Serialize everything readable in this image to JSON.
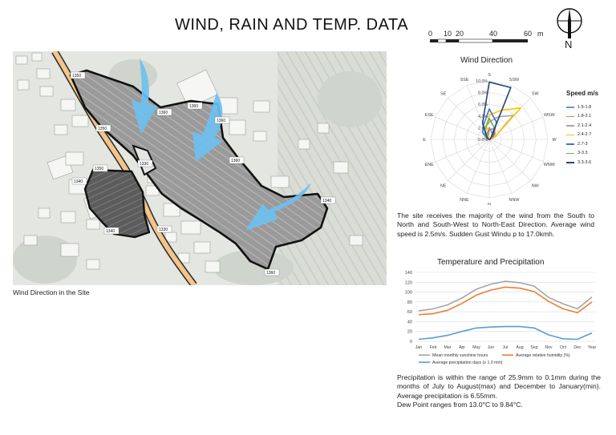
{
  "header": {
    "title": "WIND, RAIN AND  TEMP. DATA",
    "scale_labels": [
      "0",
      "10",
      "20",
      "40",
      "60",
      "m"
    ],
    "compass_letter": "N"
  },
  "map": {
    "caption": "Wind Direction in the Site",
    "contour_labels": [
      "1350",
      "1360",
      "1360",
      "1360",
      "1350",
      "1360",
      "1340",
      "1330",
      "1350",
      "1340",
      "1360",
      "1340",
      "1330"
    ]
  },
  "wind": {
    "title": "Wind Direction",
    "directions": [
      "S",
      "SSW",
      "SW",
      "WSW",
      "W",
      "WNW",
      "NW",
      "NNW",
      "N",
      "NNE",
      "NE",
      "ENE",
      "E",
      "ESE",
      "SE",
      "SSE"
    ],
    "ring_labels": [
      "0.0%",
      "2.0%",
      "4.0%",
      "6.0%",
      "8.0%",
      "10.0%"
    ],
    "legend_title": "Speed m/s",
    "series": [
      {
        "name": "1.5-1.8",
        "color": "#5b9bd5",
        "values": [
          2.0,
          1.2,
          0.8,
          0.4,
          0.2,
          0,
          0,
          0,
          0,
          0,
          0,
          0,
          0,
          0.2,
          0.6,
          1.0
        ]
      },
      {
        "name": "1.8-2.1",
        "color": "#ed7d31",
        "values": [
          1.6,
          2.0,
          1.4,
          0.6,
          0.2,
          0,
          0,
          0,
          0,
          0,
          0,
          0,
          0,
          0,
          0.2,
          0.6
        ]
      },
      {
        "name": "2.1-2.4",
        "color": "#a5a5a5",
        "values": [
          3.0,
          4.2,
          5.8,
          1.0,
          0.2,
          0,
          0,
          0,
          0,
          0,
          0,
          0,
          0,
          0.2,
          1.0,
          2.0
        ]
      },
      {
        "name": "2.4-2.7",
        "color": "#ffc000",
        "values": [
          4.2,
          5.4,
          7.6,
          1.0,
          0.2,
          0,
          0,
          0,
          0,
          0,
          0,
          0,
          0,
          0,
          0.6,
          1.6
        ]
      },
      {
        "name": "2.7-3",
        "color": "#4472c4",
        "values": [
          5.2,
          3.2,
          1.0,
          0.2,
          0,
          0,
          0,
          0,
          0,
          0,
          0,
          0,
          0,
          0.4,
          1.6,
          2.6
        ]
      },
      {
        "name": "3-3.3",
        "color": "#70ad47",
        "values": [
          3.6,
          2.2,
          0.6,
          0.2,
          0,
          0,
          0,
          0,
          0,
          0,
          0,
          0,
          0,
          0.2,
          1.0,
          2.0
        ]
      },
      {
        "name": "3.3-3.6",
        "color": "#264478",
        "values": [
          9.8,
          9.6,
          0.4,
          0.2,
          0,
          0,
          0,
          0,
          0,
          0,
          0,
          0,
          0,
          0.2,
          0.6,
          3.0
        ]
      }
    ],
    "description": "The site receives the majority of the wind from the South to North and South-West to North-East Direction. Average wind speed is 2.5m/s. Sudden Gust Windu p to 17.0kmh."
  },
  "chart_data": {
    "type": "line",
    "title": "Temperature and Precipitation",
    "categories": [
      "Jan",
      "Feb",
      "Mar",
      "Apr",
      "May",
      "Jun",
      "Jul",
      "Aug",
      "Sep",
      "Nov",
      "Oct",
      "Dec",
      "Year"
    ],
    "ylim": [
      0,
      140
    ],
    "yticks": [
      "0",
      "20",
      "40",
      "60",
      "80",
      "100",
      "120",
      "140"
    ],
    "legend_placement": "bottom",
    "series": [
      {
        "name": "Mean monthly sunshine hours",
        "color": "#a5a5a5",
        "values": [
          62,
          66,
          74,
          88,
          106,
          116,
          122,
          119,
          112,
          89,
          76,
          66,
          90
        ]
      },
      {
        "name": "Average relative humidity (%)",
        "color": "#ed7d31",
        "values": [
          54,
          56,
          63,
          77,
          94,
          104,
          110,
          108,
          101,
          81,
          66,
          58,
          80
        ]
      },
      {
        "name": "Average precipitation days (≥ 1.0 mm)",
        "color": "#5b9bd5",
        "values": [
          4,
          7,
          12,
          20,
          27,
          29,
          30,
          30,
          27,
          13,
          5,
          4,
          17
        ]
      }
    ]
  },
  "rain": {
    "description_1": "Precipitation is within the range of 25.9mm to 0.1mm during the months of July to August(max) and December to January(min). Average precipitation is 6.55mm.",
    "description_2": "Dew Point ranges from 13.0°C to 9.84°C."
  }
}
